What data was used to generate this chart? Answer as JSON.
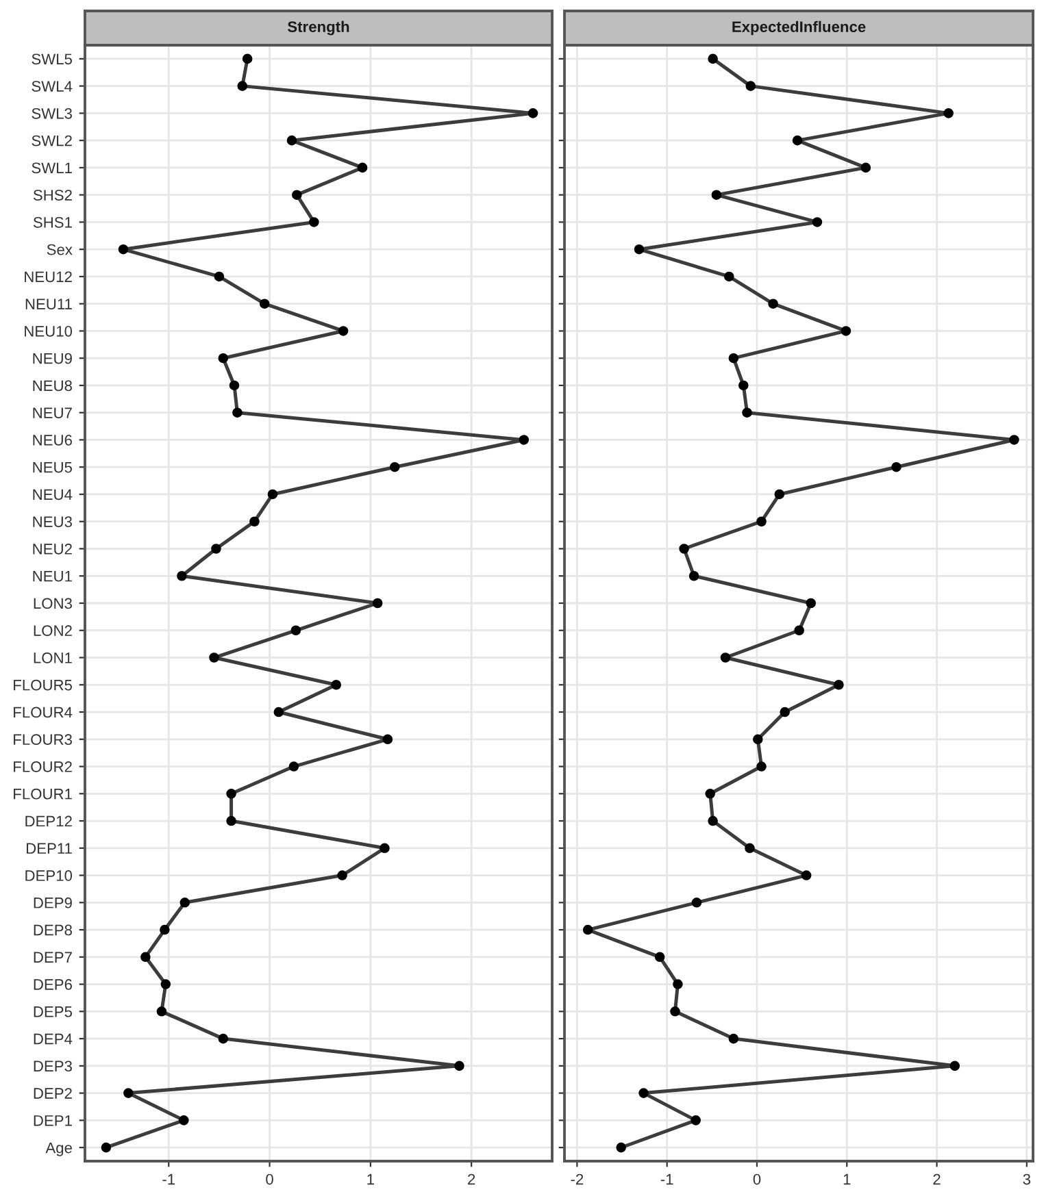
{
  "chart_data": [
    {
      "type": "line",
      "title": "Strength",
      "orientation": "horizontal",
      "grid": true,
      "marker": "circle",
      "line_style": "solid",
      "categories": [
        "SWL5",
        "SWL4",
        "SWL3",
        "SWL2",
        "SWL1",
        "SHS2",
        "SHS1",
        "Sex",
        "NEU12",
        "NEU11",
        "NEU10",
        "NEU9",
        "NEU8",
        "NEU7",
        "NEU6",
        "NEU5",
        "NEU4",
        "NEU3",
        "NEU2",
        "NEU1",
        "LON3",
        "LON2",
        "LON1",
        "FLOUR5",
        "FLOUR4",
        "FLOUR3",
        "FLOUR2",
        "FLOUR1",
        "DEP12",
        "DEP11",
        "DEP10",
        "DEP9",
        "DEP8",
        "DEP7",
        "DEP6",
        "DEP5",
        "DEP4",
        "DEP3",
        "DEP2",
        "DEP1",
        "Age"
      ],
      "series": [
        {
          "color": "#3c3c3c",
          "values": [
            -0.22,
            -0.27,
            2.61,
            0.22,
            0.92,
            0.27,
            0.44,
            -1.45,
            -0.5,
            -0.05,
            0.73,
            -0.46,
            -0.35,
            -0.32,
            2.52,
            1.24,
            0.03,
            -0.15,
            -0.53,
            -0.87,
            1.07,
            0.26,
            -0.55,
            0.66,
            0.09,
            1.17,
            0.24,
            -0.38,
            -0.38,
            1.14,
            0.72,
            -0.84,
            -1.04,
            -1.23,
            -1.03,
            -1.07,
            -0.46,
            1.88,
            -1.4,
            -0.85,
            -1.62
          ]
        }
      ],
      "xlim": [
        -1.83,
        2.8
      ],
      "xticks": [
        -1,
        0,
        1,
        2
      ]
    },
    {
      "type": "line",
      "title": "ExpectedInfluence",
      "orientation": "horizontal",
      "grid": true,
      "marker": "circle",
      "line_style": "solid",
      "tick_labels": "x",
      "series": [
        {
          "color": "#3c3c3c",
          "values": [
            -0.49,
            -0.07,
            2.13,
            0.45,
            1.21,
            -0.45,
            0.67,
            -1.31,
            -0.31,
            0.18,
            0.99,
            -0.26,
            -0.15,
            -0.11,
            2.86,
            1.55,
            0.25,
            0.05,
            -0.81,
            -0.7,
            0.6,
            0.47,
            -0.35,
            0.91,
            0.31,
            0.01,
            0.05,
            -0.52,
            -0.49,
            -0.08,
            0.55,
            -0.67,
            -1.88,
            -1.08,
            -0.88,
            -0.91,
            -0.26,
            2.2,
            -1.26,
            -0.68,
            -1.51
          ]
        }
      ],
      "xlim": [
        -2.14,
        3.07
      ],
      "xticks": [
        -2,
        -1,
        0,
        1,
        2,
        3
      ]
    }
  ]
}
